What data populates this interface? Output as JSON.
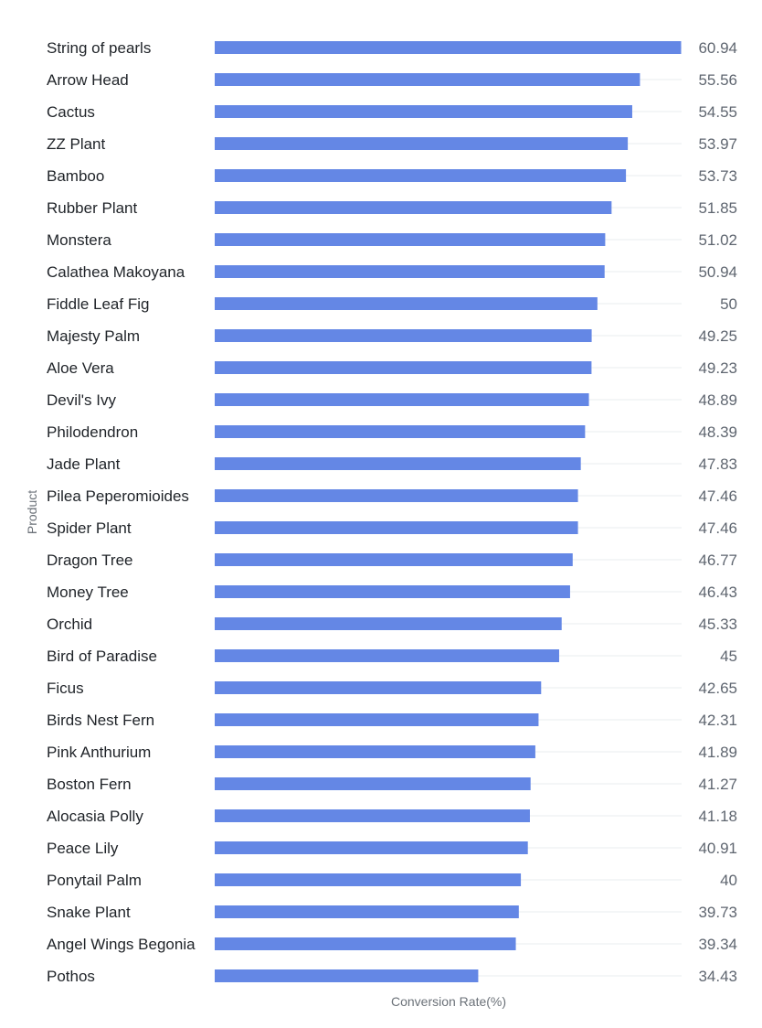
{
  "chart_data": {
    "type": "bar",
    "orientation": "horizontal",
    "xlabel": "Conversion Rate(%)",
    "ylabel": "Product",
    "xlim": [
      0,
      61
    ],
    "grid": true,
    "bar_color": "#6487e5",
    "categories": [
      "String of pearls",
      "Arrow Head",
      "Cactus",
      "ZZ Plant",
      "Bamboo",
      "Rubber Plant",
      "Monstera",
      "Calathea Makoyana",
      "Fiddle Leaf Fig",
      "Majesty Palm",
      "Aloe Vera",
      "Devil's Ivy",
      "Philodendron",
      "Jade Plant",
      "Pilea Peperomioides",
      "Spider Plant",
      "Dragon Tree",
      "Money Tree",
      "Orchid",
      "Bird of Paradise",
      "Ficus",
      "Birds Nest Fern",
      "Pink Anthurium",
      "Boston Fern",
      "Alocasia Polly",
      "Peace Lily",
      "Ponytail Palm",
      "Snake Plant",
      "Angel Wings Begonia",
      "Pothos"
    ],
    "values": [
      60.94,
      55.56,
      54.55,
      53.97,
      53.73,
      51.85,
      51.02,
      50.94,
      50,
      49.25,
      49.23,
      48.89,
      48.39,
      47.83,
      47.46,
      47.46,
      46.77,
      46.43,
      45.33,
      45,
      42.65,
      42.31,
      41.89,
      41.27,
      41.18,
      40.91,
      40,
      39.73,
      39.34,
      34.43
    ],
    "value_labels": [
      "60.94",
      "55.56",
      "54.55",
      "53.97",
      "53.73",
      "51.85",
      "51.02",
      "50.94",
      "50",
      "49.25",
      "49.23",
      "48.89",
      "48.39",
      "47.83",
      "47.46",
      "47.46",
      "46.77",
      "46.43",
      "45.33",
      "45",
      "42.65",
      "42.31",
      "41.89",
      "41.27",
      "41.18",
      "40.91",
      "40",
      "39.73",
      "39.34",
      "34.43"
    ]
  }
}
